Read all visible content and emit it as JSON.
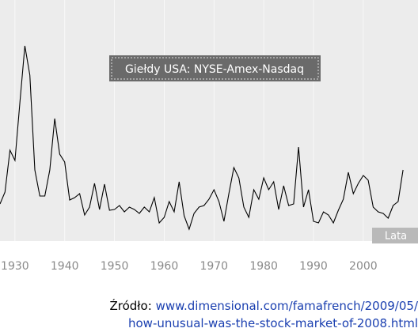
{
  "chart_data": {
    "type": "line",
    "title": "Giełdy USA: NYSE-Amex-Nasdaq",
    "x_label": "Lata",
    "x": [
      1927,
      1928,
      1929,
      1930,
      1931,
      1932,
      1933,
      1934,
      1935,
      1936,
      1937,
      1938,
      1939,
      1940,
      1941,
      1942,
      1943,
      1944,
      1945,
      1946,
      1947,
      1948,
      1949,
      1950,
      1951,
      1952,
      1953,
      1954,
      1955,
      1956,
      1957,
      1958,
      1959,
      1960,
      1961,
      1962,
      1963,
      1964,
      1965,
      1966,
      1967,
      1968,
      1969,
      1970,
      1971,
      1972,
      1973,
      1974,
      1975,
      1976,
      1977,
      1978,
      1979,
      1980,
      1981,
      1982,
      1983,
      1984,
      1985,
      1986,
      1987,
      1988,
      1989,
      1990,
      1991,
      1992,
      1993,
      1994,
      1995,
      1996,
      1997,
      1998,
      1999,
      2000,
      2001,
      2002,
      2003,
      2004,
      2005,
      2006,
      2007,
      2008
    ],
    "series": [
      {
        "color": "#000000",
        "values": [
          47,
          62,
          115,
          102,
          175,
          247,
          210,
          90,
          57,
          57,
          90,
          155,
          110,
          100,
          52,
          55,
          60,
          33,
          43,
          73,
          40,
          72,
          39,
          40,
          45,
          37,
          43,
          40,
          35,
          43,
          37,
          55,
          23,
          30,
          50,
          37,
          75,
          32,
          15,
          35,
          43,
          45,
          53,
          65,
          50,
          25,
          60,
          93,
          80,
          43,
          30,
          65,
          53,
          80,
          65,
          75,
          40,
          70,
          45,
          47,
          119,
          43,
          65,
          25,
          23,
          37,
          33,
          23,
          39,
          53,
          87,
          60,
          73,
          83,
          77,
          43,
          37,
          35,
          29,
          45,
          50,
          90
        ]
      }
    ],
    "xlim": [
      1927,
      2011
    ],
    "xticks": [
      1930,
      1940,
      1950,
      1960,
      1970,
      1980,
      1990,
      2000
    ],
    "ylim": [
      0,
      305
    ],
    "source_label": "Źródło:",
    "source_url_1": "www.dimensional.com/famafrench/2009/05/",
    "source_url_2": "how-unusual-was-the-stock-market-of-2008.html"
  }
}
